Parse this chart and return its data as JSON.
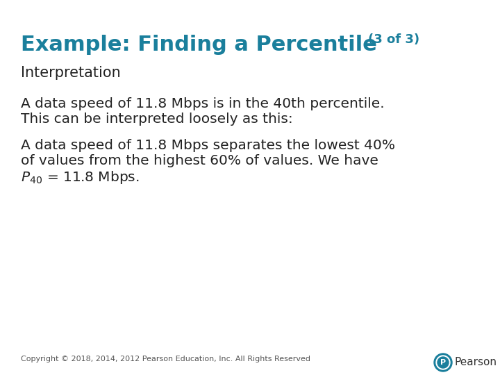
{
  "background_color": "#ffffff",
  "title_main": "Example: Finding a Percentile",
  "title_suffix": "(3 of 3)",
  "title_color": "#1a7f9c",
  "title_fontsize": 22,
  "title_suffix_fontsize": 13,
  "section_label": "Interpretation",
  "section_fontsize": 15,
  "body_fontsize": 14.5,
  "para1_line1": "A data speed of 11.8 Mbps is in the 40th percentile.",
  "para1_line2": "This can be interpreted loosely as this:",
  "para2_line1": "A data speed of 11.8 Mbps separates the lowest 40%",
  "para2_line2": "of values from the highest 60% of values. We have",
  "para2_line3": " = 11.8 Mbps.",
  "copyright": "Copyright © 2018, 2014, 2012 Pearson Education, Inc. All Rights Reserved",
  "copyright_fontsize": 8,
  "pearson_text": "Pearson",
  "pearson_color": "#333333",
  "pearson_logo_color": "#1a7f9c",
  "text_color": "#222222",
  "divider_color": "#cccccc"
}
